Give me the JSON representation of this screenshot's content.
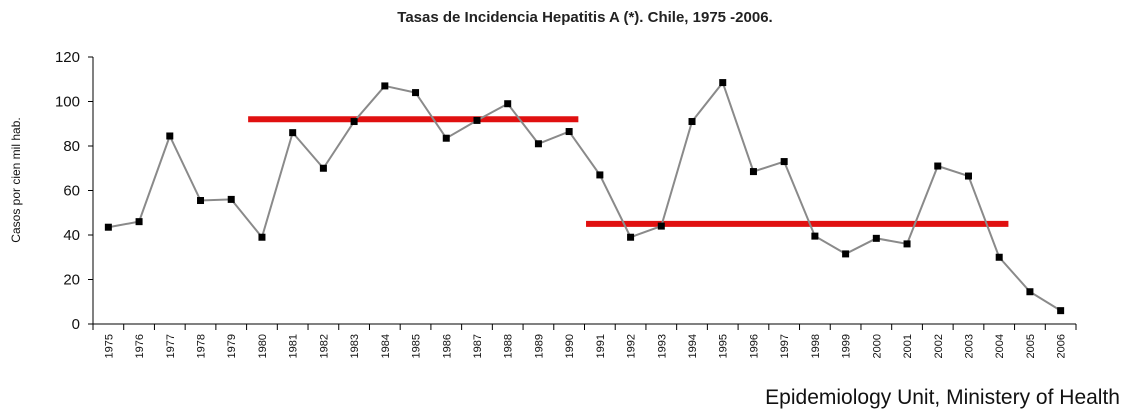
{
  "chart_data": {
    "type": "line",
    "title": "Tasas de Incidencia Hepatitis A (*). Chile, 1975 -2006.",
    "ylabel": "Casos por cien mil hab.",
    "xlabel": "",
    "source": "Epidemiology Unit, Ministery of Health",
    "ylim": [
      0,
      120
    ],
    "yticks": [
      0,
      20,
      40,
      60,
      80,
      100,
      120
    ],
    "categories": [
      "1975",
      "1976",
      "1977",
      "1978",
      "1979",
      "1980",
      "1981",
      "1982",
      "1983",
      "1984",
      "1985",
      "1986",
      "1987",
      "1988",
      "1989",
      "1990",
      "1991",
      "1992",
      "1993",
      "1994",
      "1995",
      "1996",
      "1997",
      "1998",
      "1999",
      "2000",
      "2001",
      "2002",
      "2003",
      "2004",
      "2005",
      "2006"
    ],
    "series": [
      {
        "values": [
          43.5,
          46,
          84.5,
          55.5,
          56,
          39,
          86,
          70,
          91,
          107,
          104,
          83.5,
          91.5,
          99,
          81,
          86.5,
          67,
          39,
          44,
          91,
          108.5,
          68.5,
          73,
          39.5,
          31.5,
          38.5,
          36,
          71,
          66.5,
          30,
          14.5,
          6
        ],
        "color": "#8a8a8a",
        "marker_color": "#000000"
      }
    ],
    "reference_lines": [
      {
        "from": "1980",
        "to": "1990",
        "value": 92,
        "color": "#e01010"
      },
      {
        "from": "1991",
        "to": "2004",
        "value": 45,
        "color": "#e01010"
      }
    ],
    "grid": false,
    "legend": "none"
  }
}
